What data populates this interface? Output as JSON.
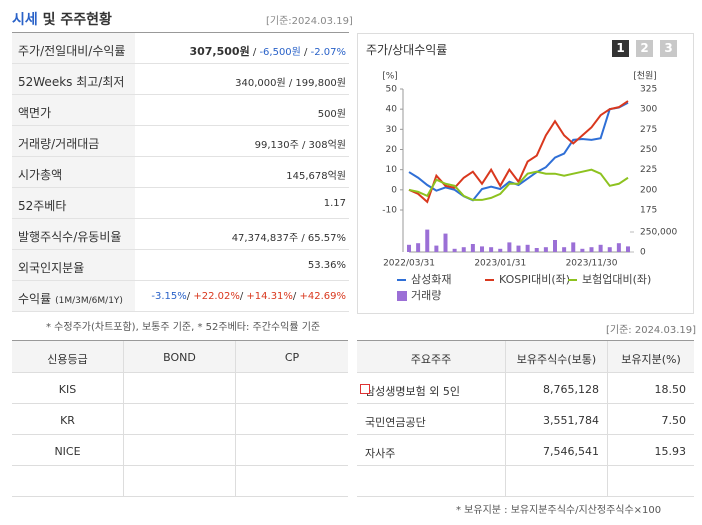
{
  "header": {
    "title": "시세",
    "title_rest": " 및 주주현황",
    "date": "[기준:2024.03.19]"
  },
  "quote_table": {
    "rows": [
      {
        "label": [
          "주가/전일대비/수익률"
        ],
        "value": [
          "307,500원",
          " / ",
          "-6,500원",
          " / ",
          "-2.07%"
        ]
      },
      {
        "label": [
          "52Weeks 최고/최저"
        ],
        "value": [
          "340,000원 / 199,800원"
        ]
      },
      {
        "label": [
          "액면가"
        ],
        "value": [
          "500원"
        ]
      },
      {
        "label": [
          "거래량/거래대금"
        ],
        "value": [
          "99,130주 / 308억원"
        ]
      },
      {
        "label": [
          "시가총액"
        ],
        "value": [
          "145,678억원"
        ]
      },
      {
        "label": [
          "52주베타"
        ],
        "value": [
          "1.17"
        ]
      },
      {
        "label": [
          "발행주식수/유동비율"
        ],
        "value": [
          "47,374,837주 / 65.57%"
        ]
      },
      {
        "label": [
          "외국인지분율"
        ],
        "value": [
          "53.36%"
        ]
      },
      {
        "label": [
          "수익률",
          "(1M/3M/6M/1Y)"
        ],
        "value": [
          "-3.15%",
          "/ ",
          "+22.02%",
          "/ ",
          "+14.31%",
          "/ ",
          "+42.69%"
        ]
      }
    ]
  },
  "quote_note": "* 수정주가(차트포함), 보통주 기준, * 52주베타: 주간수익률 기준",
  "chart_panel": {
    "title": "주가/상대수익률",
    "buttons": [
      "1",
      "2",
      "3"
    ]
  },
  "chart_data": {
    "type": "line",
    "y_unit": "[%]",
    "y2_unit": "[천원]",
    "categories": [
      "2022/03/31",
      null,
      null,
      null,
      null,
      null,
      null,
      null,
      null,
      null,
      "2023/01/31",
      null,
      null,
      null,
      null,
      null,
      null,
      null,
      null,
      null,
      "2023/11/30",
      null,
      null,
      null,
      null
    ],
    "ylim": [
      -10,
      50
    ],
    "yticks": [
      -10,
      0,
      10,
      20,
      30,
      40,
      50
    ],
    "y2lim": [
      175,
      325
    ],
    "y2ticks": [
      175,
      200,
      225,
      250,
      275,
      300,
      325
    ],
    "y3lim": [
      0,
      300000
    ],
    "y3ticks": [
      {
        "value": 250000,
        "label": "250,000"
      },
      0
    ],
    "grid": false,
    "series": [
      {
        "name": "삼성화재",
        "color": "#2f6fd6",
        "axis": "y2",
        "values": [
          222,
          215,
          206,
          199,
          203,
          200,
          192,
          187,
          201,
          204,
          201,
          210,
          206,
          214,
          222,
          228,
          240,
          245,
          262,
          263,
          262,
          264,
          300,
          302,
          308
        ]
      },
      {
        "name": "KOSPI대비(좌)",
        "color": "#d9381e",
        "values": [
          0,
          -2,
          -6,
          7,
          2,
          1,
          6,
          9,
          3,
          10,
          2,
          10,
          4,
          14,
          17,
          27,
          34,
          27,
          23,
          27,
          31,
          37,
          40,
          41,
          44
        ]
      },
      {
        "name": "보험업대비(좌)",
        "color": "#8dc21f",
        "values": [
          0,
          -1,
          -3,
          5,
          3,
          2,
          -3,
          -5,
          -5,
          -4,
          -2,
          3,
          3,
          8,
          9,
          8,
          8,
          7,
          8,
          9,
          10,
          8,
          2,
          3,
          6
        ]
      },
      {
        "name": "거래량",
        "color": "#9b6fd6",
        "axis": "y3",
        "type": "bar",
        "values": [
          90000,
          110000,
          280000,
          80000,
          230000,
          40000,
          60000,
          100000,
          70000,
          60000,
          40000,
          120000,
          80000,
          90000,
          50000,
          60000,
          150000,
          60000,
          120000,
          40000,
          60000,
          90000,
          60000,
          110000,
          70000
        ]
      }
    ]
  },
  "credit_table": {
    "columns": [
      "신용등급",
      "BOND",
      "CP"
    ],
    "rows": [
      [
        "KIS"
      ],
      [
        "KR"
      ],
      [
        "NICE"
      ]
    ]
  },
  "holders": {
    "date": "[기준: 2024.03.19]",
    "columns": [
      "주요주주",
      "보유주식수(보통)",
      "보유지분(%)"
    ],
    "rows": [
      [
        "삼성생명보험 외 5인",
        "8,765,128",
        "18.50"
      ],
      [
        "국민연금공단",
        "3,551,784",
        "7.50"
      ],
      [
        "자사주",
        "7,546,541",
        "15.93"
      ]
    ]
  },
  "holders_note": "* 보유지분 : 보유지분주식수/지산정주식수×100"
}
